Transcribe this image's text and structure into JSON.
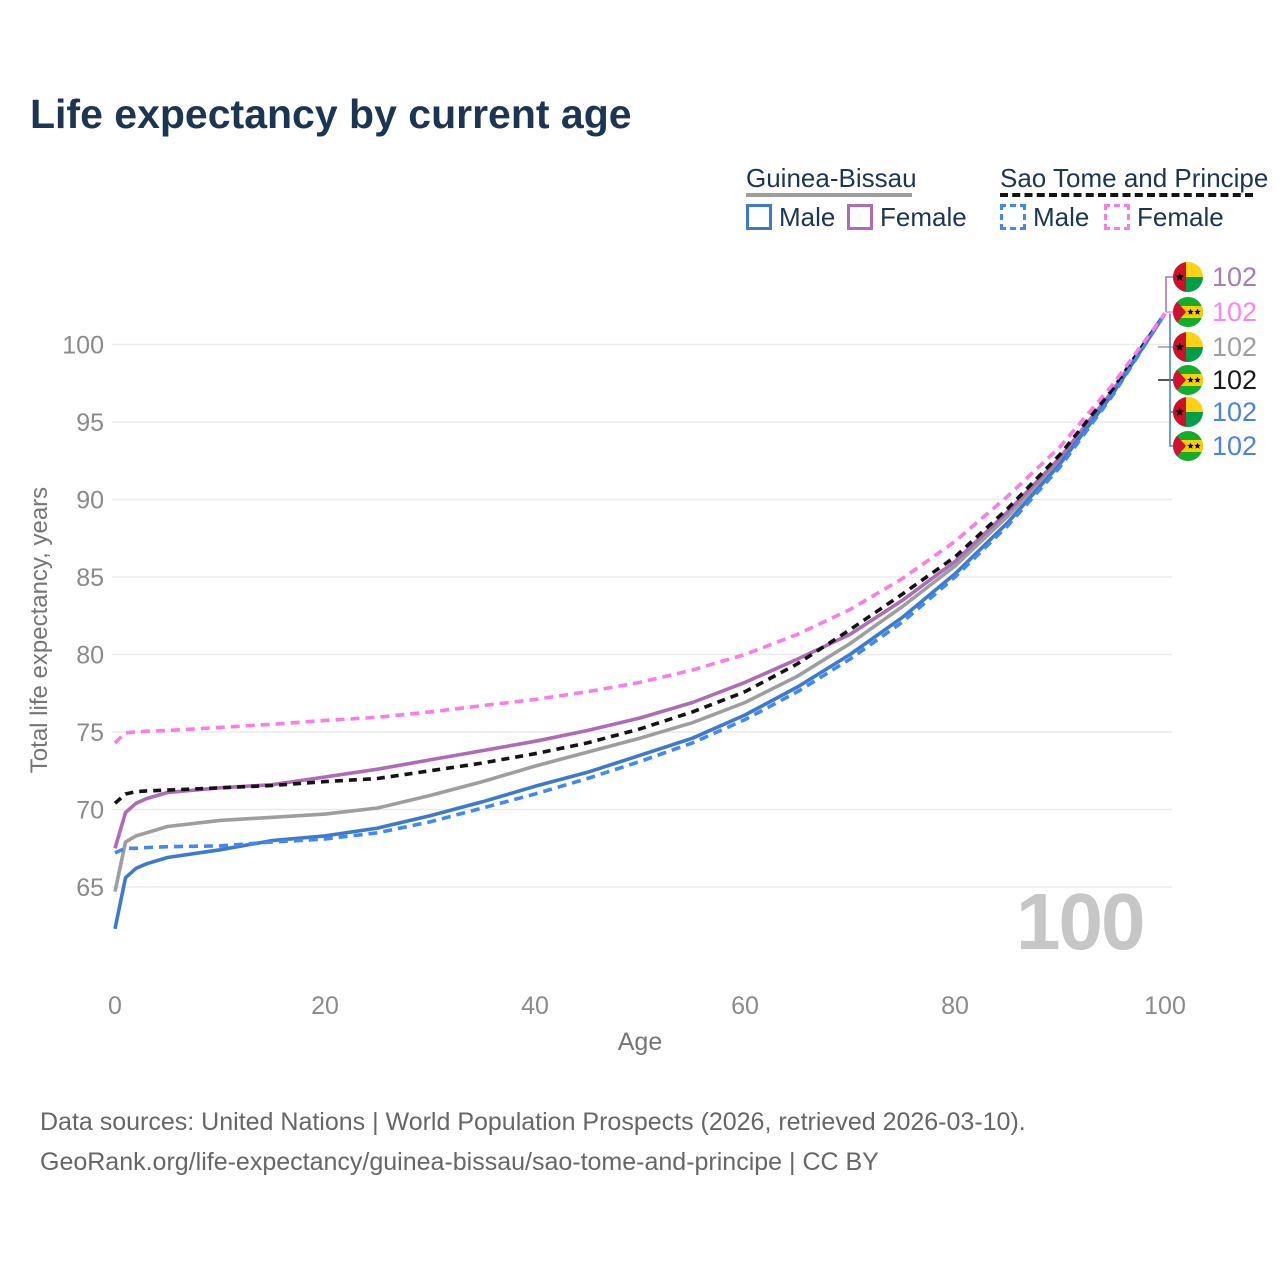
{
  "title": "Life expectancy by current age",
  "watermark": {
    "text": "100"
  },
  "legend": {
    "groups": [
      {
        "name": "Guinea-Bissau",
        "line_style": "solid",
        "rule_color": "#9e9e9e",
        "items": [
          {
            "label": "Male",
            "color": "#3d79cc"
          },
          {
            "label": "Female",
            "color": "#ad6cb5"
          }
        ]
      },
      {
        "name": "Sao Tome and Principe",
        "line_style": "dashed",
        "rule_color": "#141414",
        "items": [
          {
            "label": "Male",
            "color": "#4187f5"
          },
          {
            "label": "Female",
            "color": "#fb7ce8"
          }
        ]
      }
    ]
  },
  "chart_data": {
    "type": "line",
    "x_axis": {
      "label": "Age",
      "ticks": [
        0,
        20,
        40,
        60,
        80,
        100
      ],
      "range": [
        0,
        100
      ]
    },
    "y_axis": {
      "label": "Total life expectancy, years",
      "ticks": [
        65,
        70,
        75,
        80,
        85,
        90,
        95,
        100
      ],
      "range": [
        61.5,
        105
      ],
      "grid": true
    },
    "ages": [
      0,
      1,
      2,
      3,
      5,
      10,
      15,
      20,
      25,
      30,
      35,
      40,
      45,
      50,
      55,
      60,
      65,
      70,
      75,
      80,
      85,
      90,
      95,
      100
    ],
    "series": [
      {
        "id": "guinea-bissau-total",
        "name": "Guinea-Bissau Total",
        "color": "#9e9e9e",
        "dash": "",
        "values": [
          64.7,
          67.9,
          68.3,
          68.5,
          68.9,
          69.3,
          69.5,
          69.7,
          70.1,
          70.9,
          71.8,
          72.8,
          73.7,
          74.6,
          75.6,
          76.9,
          78.6,
          80.7,
          83.1,
          85.7,
          88.9,
          92.5,
          96.9,
          102
        ]
      },
      {
        "id": "guinea-bissau-female",
        "name": "Guinea-Bissau Female",
        "color": "#ad6cb5",
        "dash": "",
        "values": [
          67.5,
          69.8,
          70.4,
          70.7,
          71.1,
          71.4,
          71.6,
          72.1,
          72.6,
          73.2,
          73.8,
          74.4,
          75.1,
          75.9,
          76.9,
          78.2,
          79.7,
          81.3,
          83.5,
          86.0,
          89.2,
          92.7,
          97.0,
          102
        ]
      },
      {
        "id": "guinea-bissau-male",
        "name": "Guinea-Bissau Male",
        "color": "#3d79cc",
        "dash": "",
        "values": [
          62.3,
          65.6,
          66.2,
          66.5,
          66.9,
          67.4,
          68.0,
          68.3,
          68.8,
          69.6,
          70.5,
          71.5,
          72.4,
          73.5,
          74.6,
          76.1,
          77.9,
          80.0,
          82.4,
          85.2,
          88.5,
          92.3,
          96.8,
          102
        ]
      },
      {
        "id": "sao-tome-total",
        "name": "Sao Tome and Principe Total",
        "color": "#141414",
        "dash": "8 6",
        "values": [
          70.4,
          71.0,
          71.15,
          71.2,
          71.25,
          71.4,
          71.55,
          71.8,
          72.0,
          72.5,
          73.0,
          73.6,
          74.3,
          75.2,
          76.3,
          77.6,
          79.4,
          81.6,
          83.9,
          86.3,
          89.4,
          92.9,
          97.1,
          102
        ]
      },
      {
        "id": "sao-tome-male",
        "name": "Sao Tome and Principe Male",
        "color": "#4187f5",
        "dash": "9 6",
        "values": [
          67.2,
          67.5,
          67.5,
          67.55,
          67.6,
          67.65,
          67.9,
          68.1,
          68.5,
          69.2,
          70.1,
          71.0,
          72.0,
          73.1,
          74.3,
          75.8,
          77.6,
          79.7,
          82.1,
          85.0,
          88.3,
          92.1,
          96.7,
          102
        ]
      },
      {
        "id": "sao-tome-female",
        "name": "Sao Tome and Principe Female",
        "color": "#fb7ce8",
        "dash": "9 6",
        "values": [
          74.3,
          74.95,
          75.0,
          75.05,
          75.1,
          75.3,
          75.5,
          75.75,
          75.95,
          76.3,
          76.7,
          77.1,
          77.6,
          78.2,
          79.0,
          80.0,
          81.3,
          82.9,
          84.9,
          87.3,
          90.2,
          93.4,
          97.4,
          102
        ]
      }
    ],
    "end_labels": [
      {
        "flag": "guinea-bissau",
        "value": "102",
        "color": "#a77ab8",
        "series": "guinea-bissau-female"
      },
      {
        "flag": "sao-tome",
        "value": "102",
        "color": "#fb85ee",
        "series": "sao-tome-female"
      },
      {
        "flag": "guinea-bissau",
        "value": "102",
        "color": "#9e9e9e",
        "series": "guinea-bissau-total"
      },
      {
        "flag": "sao-tome",
        "value": "102",
        "color": "#1a1a1a",
        "series": "sao-tome-total"
      },
      {
        "flag": "guinea-bissau",
        "value": "102",
        "color": "#4b82e0",
        "series": "guinea-bissau-male"
      },
      {
        "flag": "sao-tome",
        "value": "102",
        "color": "#4b82e0",
        "series": "sao-tome-male"
      }
    ]
  },
  "footer": {
    "line1": "Data sources: United Nations | World Population Prospects (2026, retrieved 2026-03-10).",
    "line2": "GeoRank.org/life-expectancy/guinea-bissau/sao-tome-and-principe | CC BY"
  }
}
